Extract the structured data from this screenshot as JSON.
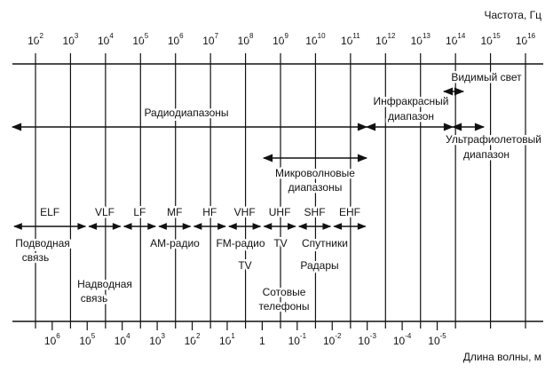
{
  "frequency_axis": {
    "title": "Частота, Гц",
    "ticks": [
      {
        "base": "10",
        "exp": "2"
      },
      {
        "base": "10",
        "exp": "3"
      },
      {
        "base": "10",
        "exp": "4"
      },
      {
        "base": "10",
        "exp": "5"
      },
      {
        "base": "10",
        "exp": "6"
      },
      {
        "base": "10",
        "exp": "7"
      },
      {
        "base": "10",
        "exp": "8"
      },
      {
        "base": "10",
        "exp": "9"
      },
      {
        "base": "10",
        "exp": "10"
      },
      {
        "base": "10",
        "exp": "11"
      },
      {
        "base": "10",
        "exp": "12"
      },
      {
        "base": "10",
        "exp": "13"
      },
      {
        "base": "10",
        "exp": "14"
      },
      {
        "base": "10",
        "exp": "15"
      },
      {
        "base": "10",
        "exp": "16"
      }
    ]
  },
  "wavelength_axis": {
    "title": "Длина волны, м",
    "ticks": [
      {
        "base": "10",
        "exp": "6"
      },
      {
        "base": "10",
        "exp": "5"
      },
      {
        "base": "10",
        "exp": "4"
      },
      {
        "base": "10",
        "exp": "3"
      },
      {
        "base": "10",
        "exp": "2"
      },
      {
        "base": "10",
        "exp": "1"
      },
      {
        "base": "1"
      },
      {
        "base": "10",
        "exp": "-1"
      },
      {
        "base": "10",
        "exp": "-2"
      },
      {
        "base": "10",
        "exp": "-3"
      },
      {
        "base": "10",
        "exp": "-4"
      },
      {
        "base": "10",
        "exp": "-5"
      }
    ]
  },
  "ranges": {
    "visible": [
      "Видимый свет"
    ],
    "infrared": [
      "Инфракрасный",
      "диапазон"
    ],
    "radio": [
      "Радиодиапазоны"
    ],
    "ultraviolet": [
      "Ультрафиолетовый",
      "диапазон"
    ],
    "microwave": [
      "Микроволновые",
      "диапазоны"
    ]
  },
  "bands": [
    "ELF",
    "VLF",
    "LF",
    "MF",
    "HF",
    "VHF",
    "UHF",
    "SHF",
    "EHF"
  ],
  "applications": [
    [
      "Подводная",
      "связь"
    ],
    [
      "Надводная",
      "связь"
    ],
    [
      "AM-радио"
    ],
    [
      "FM-радио"
    ],
    [
      "TV"
    ],
    [
      "TV"
    ],
    [
      "Спутники"
    ],
    [
      "Радары"
    ],
    [
      "Сотовые",
      "телефоны"
    ]
  ]
}
